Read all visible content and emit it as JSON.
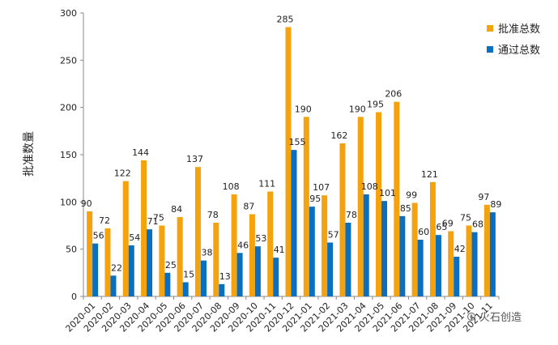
{
  "chart_data": {
    "type": "bar",
    "ylabel": "批准数量",
    "xlabel": "",
    "ylim": [
      0,
      300
    ],
    "yticks": [
      0,
      50,
      100,
      150,
      200,
      250,
      300
    ],
    "grid": false,
    "legend_position": "top-right",
    "categories": [
      "2020-01",
      "2020-02",
      "2020-03",
      "2020-04",
      "2020-05",
      "2020-06",
      "2020-07",
      "2020-08",
      "2020-09",
      "2020-10",
      "2020-11",
      "2020-12",
      "2021-01",
      "2021-02",
      "2021-03",
      "2021-04",
      "2021-05",
      "2021-06",
      "2021-07",
      "2021-08",
      "2021-09",
      "2021-10",
      "2021-11"
    ],
    "series": [
      {
        "name": "批准总数",
        "color": "#F5A20F",
        "values": [
          90,
          72,
          122,
          144,
          75,
          84,
          137,
          78,
          108,
          87,
          111,
          285,
          190,
          107,
          162,
          190,
          195,
          206,
          99,
          121,
          69,
          75,
          97
        ]
      },
      {
        "name": "通过总数",
        "color": "#0A6FBE",
        "values": [
          56,
          22,
          54,
          71,
          25,
          15,
          38,
          13,
          46,
          53,
          41,
          155,
          95,
          57,
          78,
          108,
          101,
          85,
          60,
          65,
          42,
          68,
          89
        ]
      }
    ]
  },
  "watermark": {
    "text": "火石创造",
    "icon": "flame-logo-icon"
  }
}
